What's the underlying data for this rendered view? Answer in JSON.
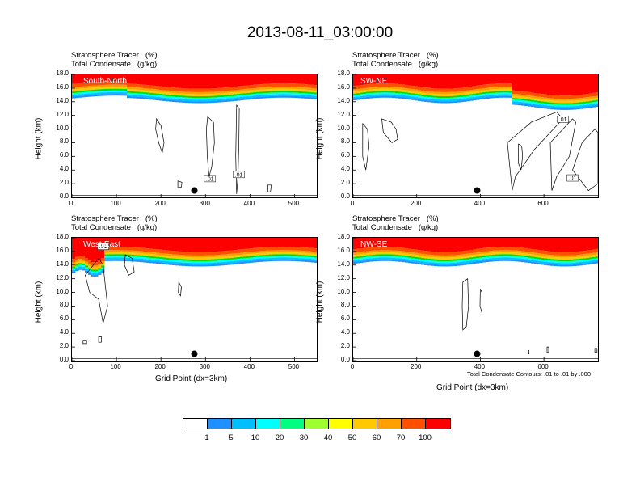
{
  "title": "2013-08-11_03:00:00",
  "panel_label_1": "Stratosphere Tracer   (%)",
  "panel_label_2": "Total Condensate   (g/kg)",
  "ylabel": "Height (km)",
  "xlabel": "Grid Point (dx=3km)",
  "contour_note": "Total Condensate Contours: .01 to .01 by .000",
  "colors": {
    "levels": [
      "#ffffff",
      "#1e90ff",
      "#00bfff",
      "#00ffff",
      "#00ff80",
      "#00e000",
      "#a0ff30",
      "#ffff00",
      "#ffc800",
      "#ffa000",
      "#ff5000",
      "#ff0000"
    ],
    "contour": "#000000"
  },
  "colorbar_labels": [
    "1",
    "5",
    "10",
    "20",
    "30",
    "40",
    "50",
    "60",
    "70",
    "100"
  ],
  "chart_data": [
    {
      "type": "heatmap",
      "name": "South-North",
      "ylim": [
        0,
        18
      ],
      "xlim": [
        0,
        550
      ],
      "xticks": [
        "0",
        "100",
        "200",
        "300",
        "400",
        "500"
      ],
      "yticks": [
        "0.0",
        "2.0",
        "4.0",
        "6.0",
        "8.0",
        "10.0",
        "12.0",
        "14.0",
        "16.0",
        "18.0"
      ],
      "contour_labels": [
        ".01",
        ".01"
      ],
      "location_dot": {
        "x": 275,
        "y": 1.0
      }
    },
    {
      "type": "heatmap",
      "name": "SW-NE",
      "ylim": [
        0,
        18
      ],
      "xlim": [
        0,
        770
      ],
      "xticks": [
        "0",
        "200",
        "400",
        "600"
      ],
      "yticks": [
        "0.0",
        "2.0",
        "4.0",
        "6.0",
        "8.0",
        "10.0",
        "12.0",
        "14.0",
        "16.0",
        "18.0"
      ],
      "contour_labels": [
        ".01",
        ".01"
      ],
      "location_dot": {
        "x": 390,
        "y": 1.0
      }
    },
    {
      "type": "heatmap",
      "name": "West-East",
      "ylim": [
        0,
        18
      ],
      "xlim": [
        0,
        550
      ],
      "xticks": [
        "0",
        "100",
        "200",
        "300",
        "400",
        "500"
      ],
      "yticks": [
        "0.0",
        "2.0",
        "4.0",
        "6.0",
        "8.0",
        "10.0",
        "12.0",
        "14.0",
        "16.0",
        "18.0"
      ],
      "contour_labels": [
        ".01"
      ],
      "location_dot": {
        "x": 275,
        "y": 1.0
      }
    },
    {
      "type": "heatmap",
      "name": "NW-SE",
      "ylim": [
        0,
        18
      ],
      "xlim": [
        0,
        770
      ],
      "xticks": [
        "0",
        "200",
        "400",
        "600"
      ],
      "yticks": [
        "0.0",
        "2.0",
        "4.0",
        "6.0",
        "8.0",
        "10.0",
        "12.0",
        "14.0",
        "16.0",
        "18.0"
      ],
      "contour_labels": [],
      "location_dot": {
        "x": 390,
        "y": 1.0
      }
    }
  ]
}
